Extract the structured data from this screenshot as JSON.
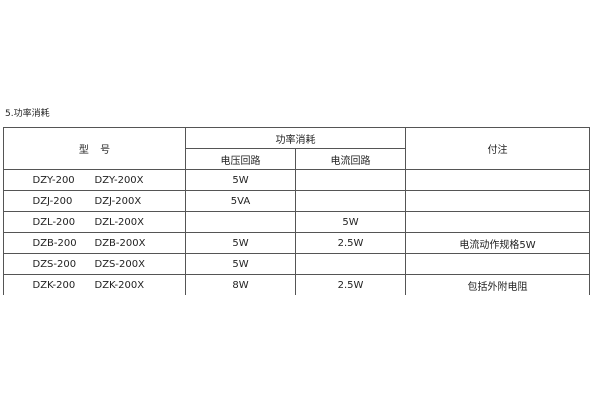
{
  "title": "5.功率消耗",
  "headers": {
    "model": "型 号",
    "power": "功率消耗",
    "voltage": "电压回路",
    "current": "电流回路",
    "note": "付注"
  },
  "rows": [
    {
      "m1": "DZY-200",
      "m2": "DZY-200X",
      "v": "5W",
      "c": "",
      "n": ""
    },
    {
      "m1": "DZJ-200",
      "m2": "DZJ-200X",
      "v": "5VA",
      "c": "",
      "n": ""
    },
    {
      "m1": "DZL-200",
      "m2": "DZL-200X",
      "v": "",
      "c": "5W",
      "n": ""
    },
    {
      "m1": "DZB-200",
      "m2": "DZB-200X",
      "v": "5W",
      "c": "2.5W",
      "n": "电流动作规格5W"
    },
    {
      "m1": "DZS-200",
      "m2": "DZS-200X",
      "v": "5W",
      "c": "",
      "n": ""
    },
    {
      "m1": "DZK-200",
      "m2": "DZK-200X",
      "v": "8W",
      "c": "2.5W",
      "n": "包括外附电阻"
    }
  ]
}
